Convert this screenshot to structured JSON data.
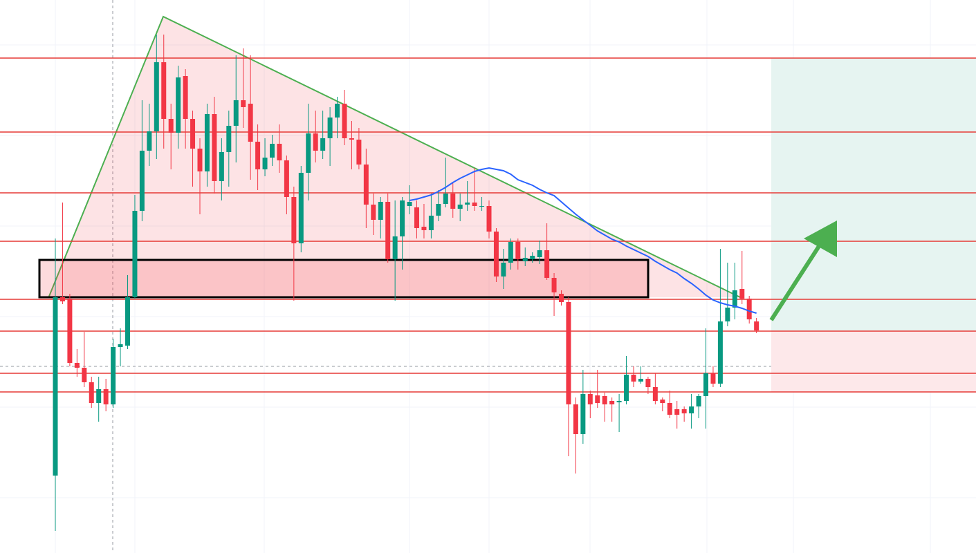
{
  "chart_data": {
    "type": "candlestick",
    "ylim": [
      0,
      800
    ],
    "up_color": "#089981",
    "down_color": "#f23645",
    "open": [
      112,
      370,
      368,
      275,
      268,
      247,
      217,
      237,
      215,
      298,
      300,
      370,
      495,
      582,
      610,
      710,
      628,
      608,
      690,
      628,
      585,
      552,
      635,
      538,
      580,
      618,
      655,
      650,
      595,
      555,
      572,
      592,
      568,
      515,
      448,
      550,
      607,
      582,
      600,
      630,
      650,
      600,
      598,
      562,
      504,
      482,
      508,
      425,
      458,
      502,
      500,
      472,
      467,
      488,
      505,
      520,
      498,
      504,
      507,
      502,
      502,
      465,
      400,
      420,
      450,
      422,
      425,
      428,
      438,
      398,
      375,
      363,
      215,
      172,
      230,
      228,
      227,
      220,
      218,
      220,
      258,
      248,
      252,
      240,
      222,
      217,
      208,
      208,
      202,
      212,
      227,
      260,
      245,
      335,
      355,
      382,
      368,
      335
    ],
    "high": [
      455,
      507,
      375,
      295,
      320,
      255,
      255,
      252,
      310,
      325,
      402,
      518,
      655,
      650,
      750,
      750,
      650,
      705,
      700,
      640,
      600,
      650,
      660,
      600,
      640,
      720,
      730,
      720,
      620,
      600,
      605,
      620,
      575,
      530,
      560,
      650,
      640,
      640,
      645,
      660,
      670,
      625,
      615,
      585,
      520,
      515,
      520,
      510,
      515,
      532,
      510,
      505,
      520,
      525,
      572,
      535,
      520,
      538,
      557,
      515,
      510,
      470,
      440,
      455,
      455,
      442,
      435,
      452,
      477,
      405,
      380,
      370,
      225,
      265,
      235,
      265,
      232,
      225,
      230,
      285,
      270,
      270,
      255,
      260,
      225,
      235,
      220,
      212,
      230,
      230,
      325,
      270,
      440,
      420,
      420,
      437,
      372,
      340
    ],
    "low": [
      32,
      360,
      270,
      255,
      240,
      210,
      190,
      205,
      210,
      270,
      295,
      368,
      480,
      560,
      570,
      585,
      555,
      585,
      585,
      530,
      490,
      530,
      520,
      510,
      530,
      565,
      615,
      540,
      525,
      545,
      560,
      550,
      490,
      365,
      435,
      510,
      565,
      570,
      560,
      600,
      590,
      555,
      555,
      470,
      460,
      455,
      420,
      365,
      410,
      490,
      455,
      455,
      455,
      480,
      500,
      485,
      480,
      495,
      495,
      495,
      455,
      392,
      382,
      410,
      410,
      415,
      420,
      418,
      395,
      343,
      358,
      140,
      115,
      158,
      195,
      210,
      190,
      190,
      175,
      215,
      240,
      245,
      230,
      215,
      205,
      195,
      180,
      190,
      180,
      195,
      180,
      240,
      240,
      328,
      338,
      360,
      332,
      318
    ],
    "close": [
      370,
      364,
      275,
      268,
      247,
      217,
      237,
      215,
      298,
      302,
      370,
      495,
      582,
      610,
      710,
      628,
      608,
      688,
      628,
      585,
      552,
      635,
      538,
      580,
      618,
      655,
      645,
      595,
      555,
      572,
      592,
      568,
      515,
      448,
      550,
      607,
      582,
      600,
      630,
      650,
      600,
      598,
      562,
      504,
      482,
      508,
      425,
      458,
      510,
      508,
      470,
      467,
      488,
      505,
      520,
      498,
      504,
      507,
      502,
      502,
      465,
      400,
      420,
      450,
      425,
      427,
      430,
      438,
      398,
      377,
      363,
      215,
      172,
      230,
      215,
      217,
      215,
      215,
      220,
      258,
      248,
      252,
      240,
      220,
      217,
      200,
      200,
      202,
      212,
      227,
      260,
      245,
      335,
      355,
      380,
      368,
      338,
      322
    ],
    "ma": {
      "color": "#2962ff",
      "values": [
        null,
        null,
        null,
        null,
        null,
        null,
        null,
        null,
        null,
        null,
        null,
        null,
        null,
        null,
        null,
        null,
        null,
        null,
        null,
        null,
        null,
        null,
        null,
        null,
        null,
        null,
        null,
        null,
        null,
        null,
        null,
        null,
        null,
        null,
        null,
        null,
        null,
        null,
        null,
        null,
        null,
        null,
        null,
        null,
        null,
        null,
        null,
        null,
        null,
        510,
        512,
        515,
        518,
        523,
        529,
        536,
        542,
        547,
        552,
        555,
        557,
        555,
        553,
        548,
        540,
        536,
        532,
        526,
        521,
        517,
        508,
        499,
        490,
        482,
        474,
        466,
        460,
        454,
        450,
        444,
        439,
        434,
        429,
        422,
        416,
        410,
        405,
        397,
        390,
        382,
        373,
        366,
        362,
        359,
        357,
        354,
        350,
        347
      ]
    },
    "levels": {
      "color": "#e53935",
      "values": [
        716,
        609,
        521,
        451,
        367,
        321,
        260,
        233
      ]
    }
  }
}
